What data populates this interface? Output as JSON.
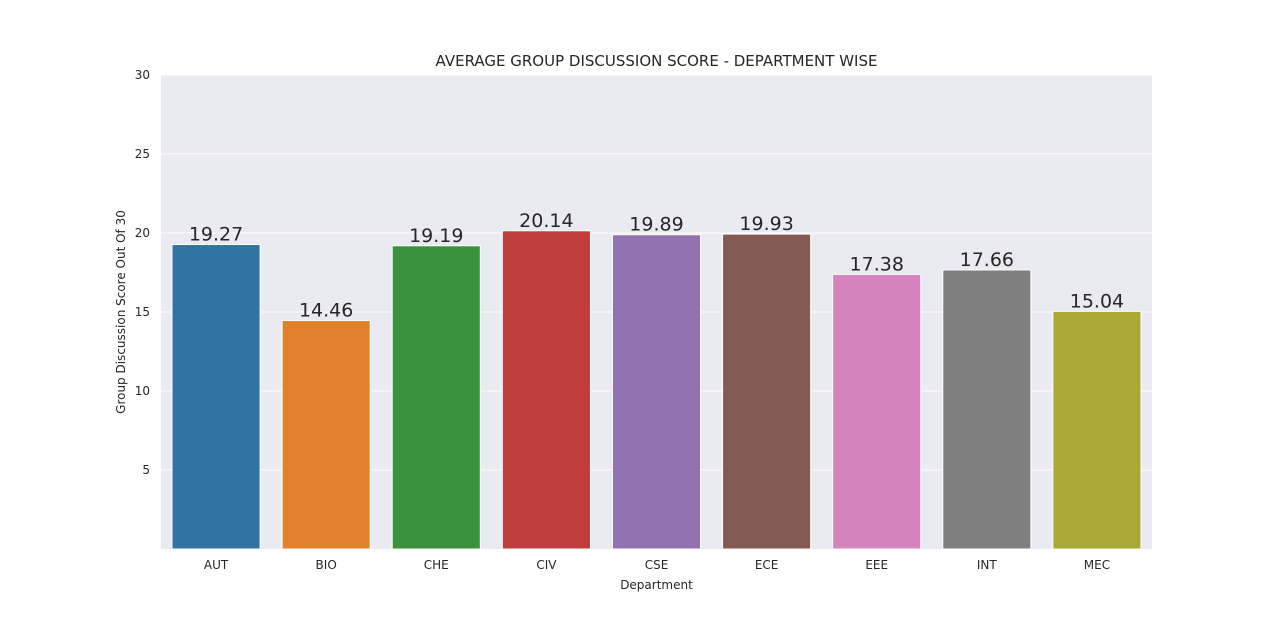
{
  "chart_data": {
    "type": "bar",
    "title": "AVERAGE GROUP DISCUSSION SCORE - DEPARTMENT WISE",
    "xlabel": "Department",
    "ylabel": "Group Discussion Score Out Of 30",
    "ylim": [
      0,
      30
    ],
    "yticks": [
      5,
      10,
      15,
      20,
      25,
      30
    ],
    "grid": true,
    "categories": [
      "AUT",
      "BIO",
      "CHE",
      "CIV",
      "CSE",
      "ECE",
      "EEE",
      "INT",
      "MEC"
    ],
    "values": [
      19.27,
      14.46,
      19.19,
      20.14,
      19.89,
      19.93,
      17.38,
      17.66,
      15.04
    ],
    "value_labels": [
      "19.27",
      "14.46",
      "19.19",
      "20.14",
      "19.89",
      "19.93",
      "17.38",
      "17.66",
      "15.04"
    ],
    "colors": [
      "#3274a1",
      "#e1812c",
      "#3a923a",
      "#c03d3e",
      "#9372b2",
      "#845b53",
      "#d684bd",
      "#7f7f7f",
      "#a9aa35"
    ],
    "background": "#eaeaf2",
    "gridline_color": "#ffffff"
  }
}
